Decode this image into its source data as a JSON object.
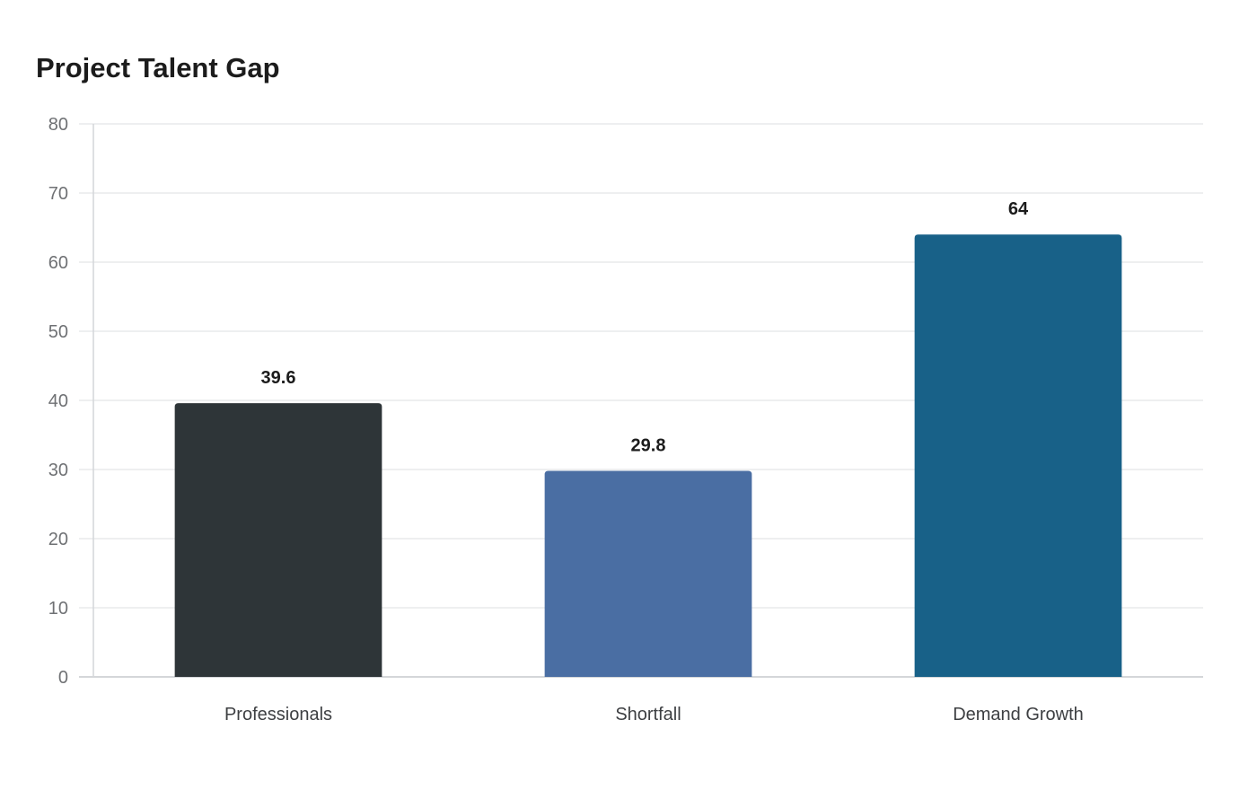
{
  "chart_data": {
    "type": "bar",
    "title": "Project Talent Gap",
    "categories": [
      "Professionals",
      "Shortfall",
      "Demand Growth"
    ],
    "values": [
      39.6,
      29.8,
      64
    ],
    "value_labels": [
      "39.6",
      "29.8",
      "64"
    ],
    "colors": [
      "#2e3538",
      "#4a6ea3",
      "#186188"
    ],
    "ylim": [
      0,
      80
    ],
    "yticks": [
      0,
      10,
      20,
      30,
      40,
      50,
      60,
      70,
      80
    ],
    "xlabel": "",
    "ylabel": "",
    "grid": true
  }
}
